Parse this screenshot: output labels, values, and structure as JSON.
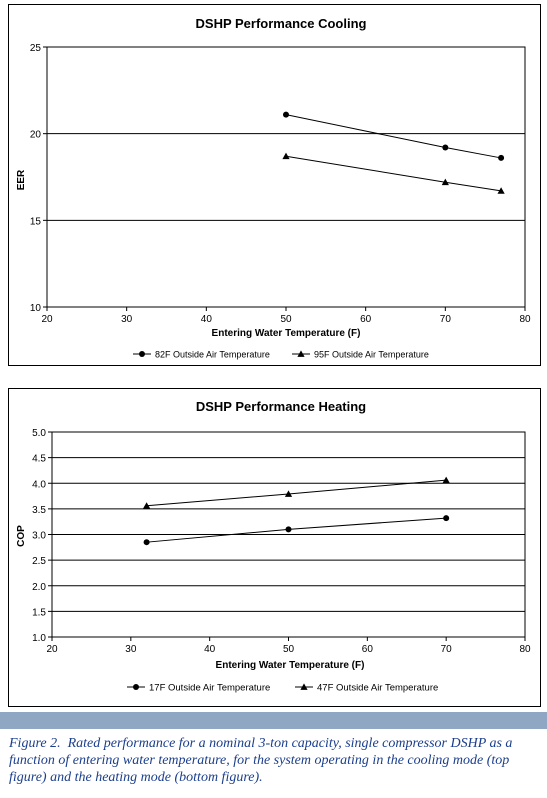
{
  "chart_data": [
    {
      "type": "line",
      "title": "DSHP Performance Cooling",
      "xlabel": "Entering Water Temperature (F)",
      "ylabel": "EER",
      "xlim": [
        20,
        80
      ],
      "ylim": [
        10,
        25
      ],
      "xticks": [
        "20",
        "30",
        "40",
        "50",
        "60",
        "70",
        "80"
      ],
      "yticks": [
        "10",
        "15",
        "20",
        "25"
      ],
      "grid": "horizontal",
      "legend": "bottom",
      "series": [
        {
          "name": "82F Outside Air Temperature",
          "marker": "circle",
          "x": [
            50,
            70,
            77
          ],
          "y": [
            21.1,
            19.2,
            18.6
          ]
        },
        {
          "name": "95F Outside Air Temperature",
          "marker": "triangle",
          "x": [
            50,
            70,
            77
          ],
          "y": [
            18.7,
            17.2,
            16.7
          ]
        }
      ]
    },
    {
      "type": "line",
      "title": "DSHP Performance Heating",
      "xlabel": "Entering Water Temperature (F)",
      "ylabel": "COP",
      "xlim": [
        20,
        80
      ],
      "ylim": [
        1.0,
        5.0
      ],
      "xticks": [
        "20",
        "30",
        "40",
        "50",
        "60",
        "70",
        "80"
      ],
      "yticks": [
        "1.0",
        "1.5",
        "2.0",
        "2.5",
        "3.0",
        "3.5",
        "4.0",
        "4.5",
        "5.0"
      ],
      "grid": "horizontal",
      "legend": "bottom",
      "series": [
        {
          "name": "17F Outside Air Temperature",
          "marker": "circle",
          "x": [
            32,
            50,
            70
          ],
          "y": [
            2.85,
            3.1,
            3.32
          ]
        },
        {
          "name": "47F Outside Air Temperature",
          "marker": "triangle",
          "x": [
            32,
            50,
            70
          ],
          "y": [
            3.56,
            3.79,
            4.06
          ]
        }
      ]
    }
  ],
  "caption": {
    "lead": "Figure 2.",
    "text": "Rated performance for a nominal 3-ton capacity, single compressor DSHP as a function of entering water temperature, for the system operating in the cooling mode (top figure) and the heating mode (bottom figure)."
  },
  "colors": {
    "band": "#8fa7c2",
    "caption": "#1b3e8c",
    "line": "#000000"
  }
}
